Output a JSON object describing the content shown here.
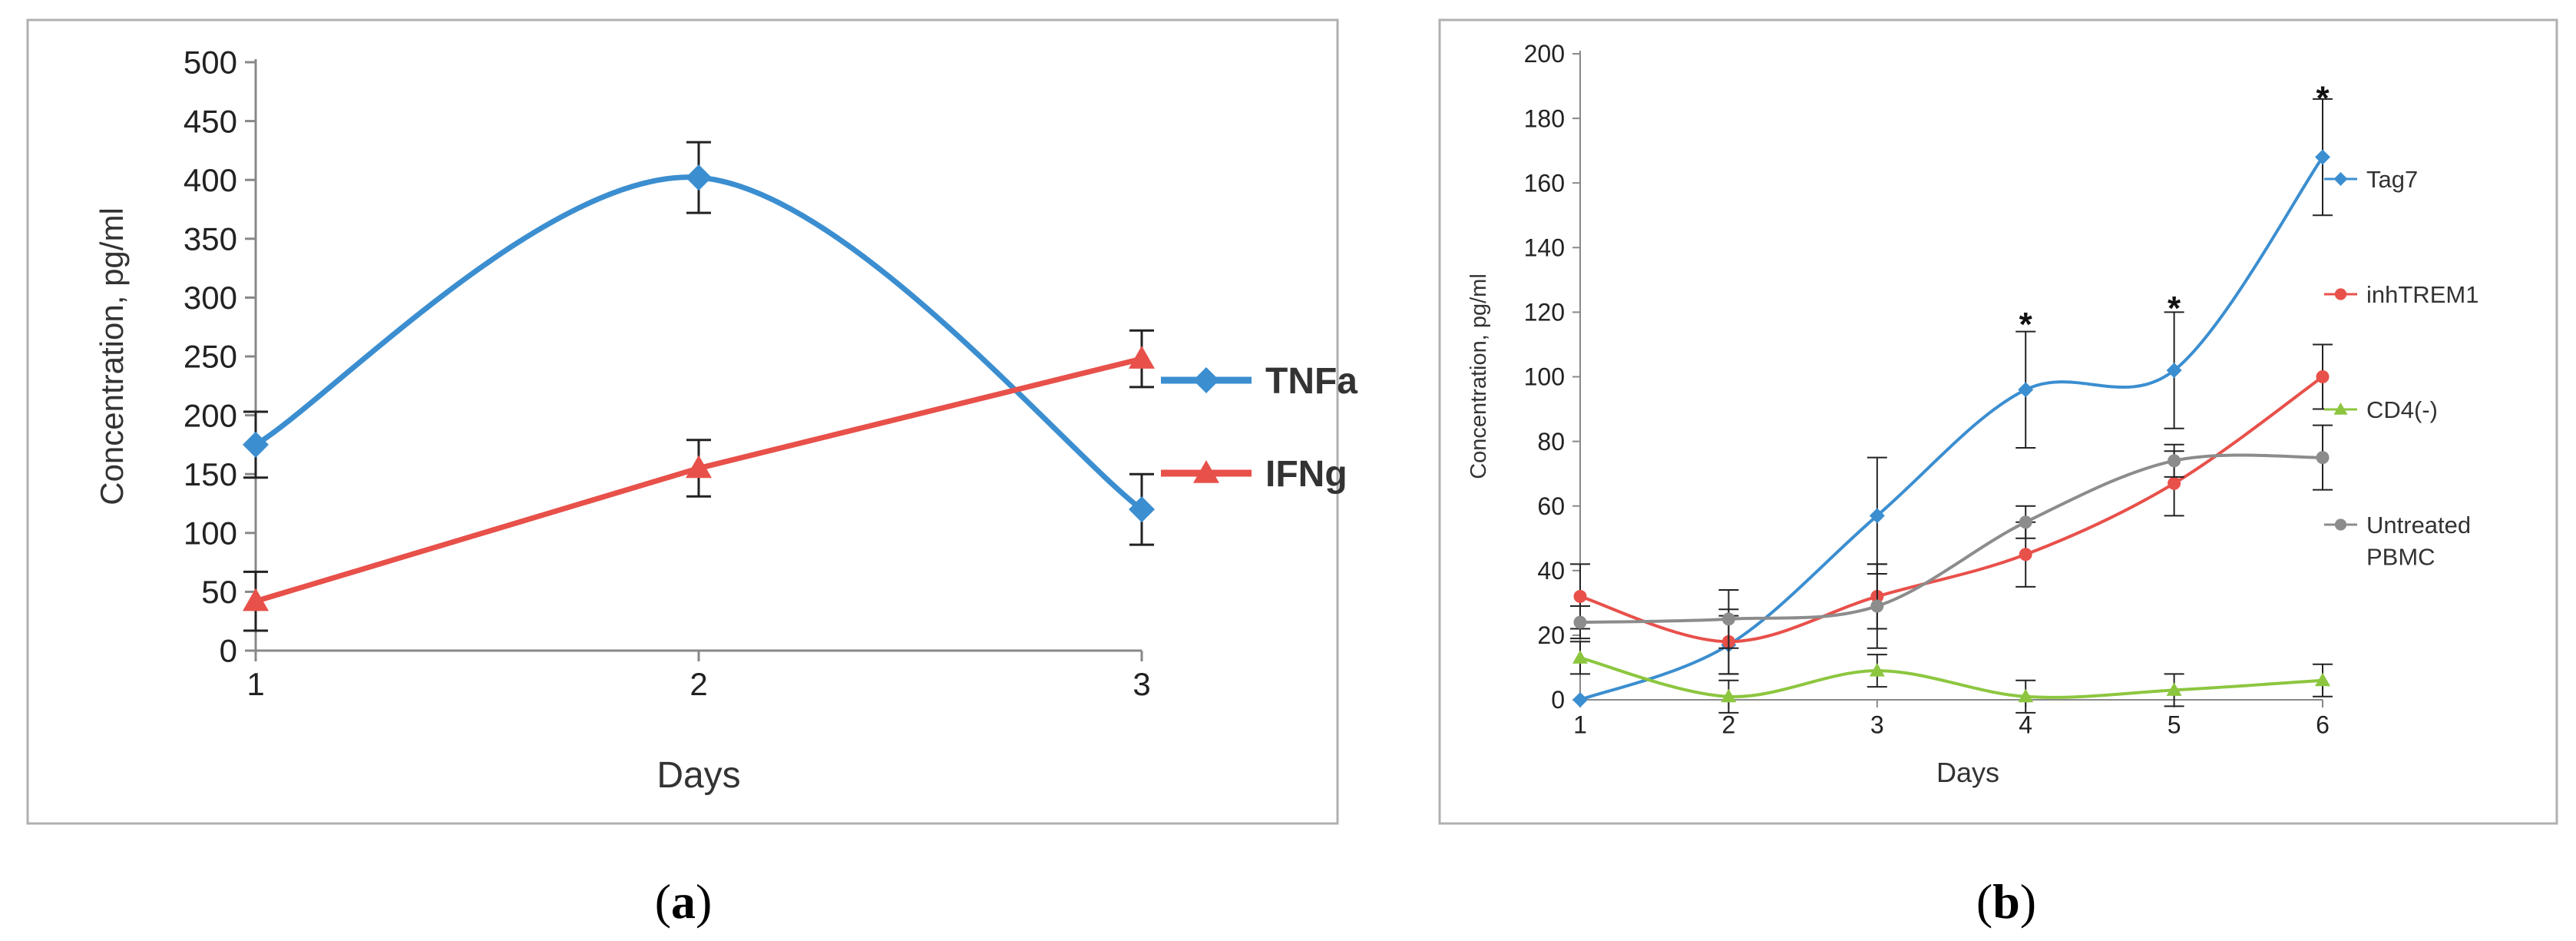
{
  "chart_data": [
    {
      "type": "line",
      "panel_label": "(a)",
      "panel_letter": "a",
      "title": "",
      "xlabel": "Days",
      "ylabel": "Concentration, pg/ml",
      "x": [
        1,
        2,
        3
      ],
      "x_ticks": [
        "1",
        "2",
        "3"
      ],
      "ylim": [
        0,
        500
      ],
      "y_ticks": [
        "0",
        "50",
        "100",
        "150",
        "200",
        "250",
        "300",
        "350",
        "400",
        "450",
        "500"
      ],
      "grid": false,
      "legend_position": "right",
      "series": [
        {
          "name": "TNFa",
          "values": [
            175,
            402,
            120
          ],
          "errors": [
            28,
            30,
            30
          ],
          "color": "#3b8ed0",
          "marker": "diamond",
          "smooth": true
        },
        {
          "name": "IFNg",
          "values": [
            42,
            155,
            248
          ],
          "errors": [
            25,
            24,
            24
          ],
          "color": "#e8504a",
          "marker": "triangle",
          "smooth": false
        }
      ]
    },
    {
      "type": "line",
      "panel_label": "(b)",
      "panel_letter": "b",
      "title": "",
      "xlabel": "Days",
      "ylabel": "Concentration, pg/ml",
      "x": [
        1,
        2,
        3,
        4,
        5,
        6
      ],
      "x_ticks": [
        "1",
        "2",
        "3",
        "4",
        "5",
        "6"
      ],
      "ylim": [
        0,
        200
      ],
      "y_ticks": [
        "0",
        "20",
        "40",
        "60",
        "80",
        "100",
        "120",
        "140",
        "160",
        "180",
        "200"
      ],
      "grid": false,
      "legend_position": "right",
      "annotations": [
        {
          "text": "*",
          "x": 4,
          "y": 118
        },
        {
          "text": "*",
          "x": 5,
          "y": 123
        },
        {
          "text": "*",
          "x": 6,
          "y": 188
        }
      ],
      "series": [
        {
          "name": "Tag7",
          "values": [
            0,
            17,
            57,
            96,
            102,
            168
          ],
          "errors": [
            0,
            9,
            18,
            18,
            18,
            18
          ],
          "color": "#3b8ed0",
          "marker": "diamond",
          "smooth": true
        },
        {
          "name": "inhTREM1",
          "values": [
            32,
            18,
            32,
            45,
            67,
            100
          ],
          "errors": [
            10,
            10,
            10,
            10,
            10,
            10
          ],
          "color": "#e8504a",
          "marker": "circle",
          "smooth": true
        },
        {
          "name": "CD4(-)",
          "values": [
            13,
            1,
            9,
            1,
            3,
            6
          ],
          "errors": [
            5,
            5,
            5,
            5,
            5,
            5
          ],
          "color": "#8cc63f",
          "marker": "triangle",
          "smooth": true
        },
        {
          "name": "Untreated PBMC",
          "name_lines": [
            "Untreated",
            "PBMC"
          ],
          "values": [
            24,
            25,
            29,
            55,
            74,
            75
          ],
          "errors": [
            5,
            9,
            13,
            5,
            5,
            10
          ],
          "color": "#8c8c8c",
          "marker": "circle",
          "smooth": true
        }
      ]
    }
  ]
}
